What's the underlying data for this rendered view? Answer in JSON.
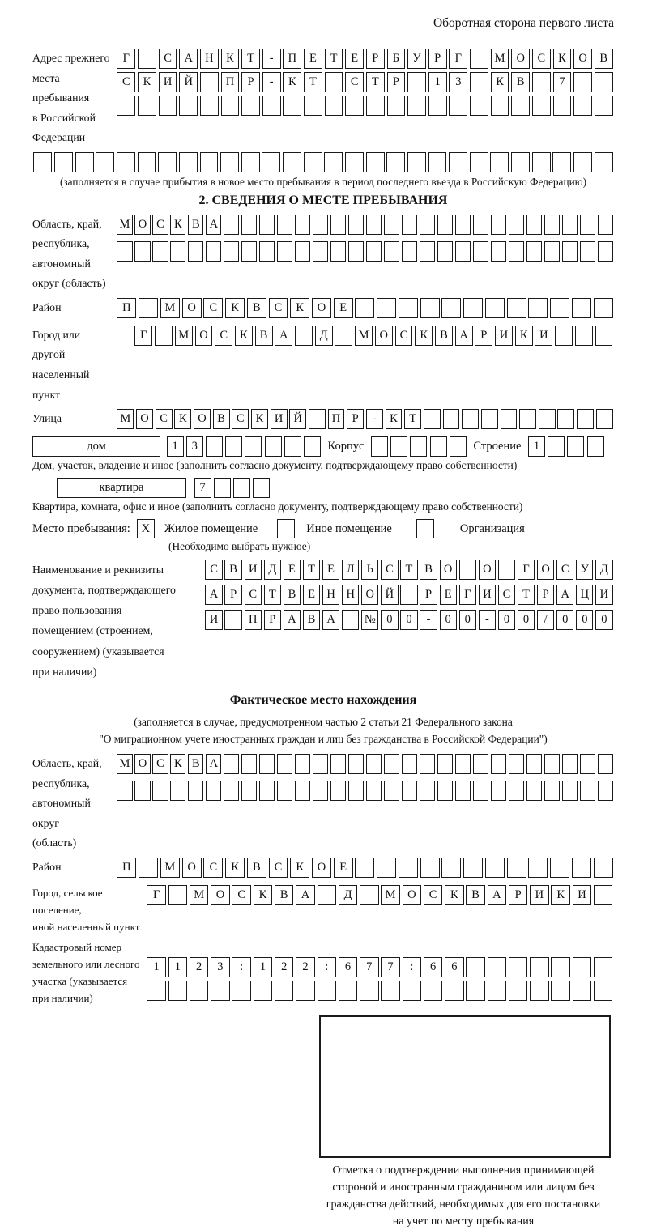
{
  "page": {
    "header_note": "Оборотная сторона первого листа"
  },
  "prev_address": {
    "label": "Адрес прежнего\nместа пребывания\nв Российской\nФедерации",
    "row1": [
      "Г",
      "",
      "С",
      "А",
      "Н",
      "К",
      "Т",
      "-",
      "П",
      "Е",
      "Т",
      "Е",
      "Р",
      "Б",
      "У",
      "Р",
      "Г",
      "",
      "М",
      "О",
      "С",
      "К",
      "О",
      "В"
    ],
    "row2": [
      "С",
      "К",
      "И",
      "Й",
      "",
      "П",
      "Р",
      "-",
      "К",
      "Т",
      "",
      "С",
      "Т",
      "Р",
      "",
      "1",
      "3",
      "",
      "К",
      "В",
      "",
      "7",
      "",
      ""
    ],
    "row3": [
      "",
      "",
      "",
      "",
      "",
      "",
      "",
      "",
      "",
      "",
      "",
      "",
      "",
      "",
      "",
      "",
      "",
      "",
      "",
      "",
      "",
      "",
      "",
      ""
    ],
    "row4": [
      "",
      "",
      "",
      "",
      "",
      "",
      "",
      "",
      "",
      "",
      "",
      "",
      "",
      "",
      "",
      "",
      "",
      "",
      "",
      "",
      "",
      "",
      "",
      "",
      "",
      "",
      "",
      ""
    ],
    "note": "(заполняется в случае прибытия в новое место пребывания в период последнего въезда в Российскую Федерацию)"
  },
  "section2": {
    "title": "2. СВЕДЕНИЯ О МЕСТЕ ПРЕБЫВАНИЯ",
    "region": {
      "label": "Область, край,\nреспублика,\nавтономный\nокруг (область)",
      "row1": [
        "М",
        "О",
        "С",
        "К",
        "В",
        "А",
        "",
        "",
        "",
        "",
        "",
        "",
        "",
        "",
        "",
        "",
        "",
        "",
        "",
        "",
        "",
        "",
        "",
        "",
        "",
        "",
        "",
        ""
      ],
      "row2": [
        "",
        "",
        "",
        "",
        "",
        "",
        "",
        "",
        "",
        "",
        "",
        "",
        "",
        "",
        "",
        "",
        "",
        "",
        "",
        "",
        "",
        "",
        "",
        "",
        "",
        "",
        "",
        ""
      ]
    },
    "district": {
      "label": "Район",
      "cells": [
        "П",
        "",
        "М",
        "О",
        "С",
        "К",
        "В",
        "С",
        "К",
        "О",
        "Е",
        "",
        "",
        "",
        "",
        "",
        "",
        "",
        "",
        "",
        "",
        "",
        ""
      ]
    },
    "city": {
      "label": "Город или другой\nнаселенный пункт",
      "cells": [
        "Г",
        "",
        "М",
        "О",
        "С",
        "К",
        "В",
        "А",
        "",
        "Д",
        "",
        "М",
        "О",
        "С",
        "К",
        "В",
        "А",
        "Р",
        "И",
        "К",
        "И",
        "",
        "",
        ""
      ]
    },
    "street": {
      "label": "Улица",
      "cells": [
        "М",
        "О",
        "С",
        "К",
        "О",
        "В",
        "С",
        "К",
        "И",
        "Й",
        "",
        "П",
        "Р",
        "-",
        "К",
        "Т",
        "",
        "",
        "",
        "",
        "",
        "",
        "",
        "",
        "",
        ""
      ]
    },
    "house": {
      "box_label": "дом",
      "cells": [
        "1",
        "3",
        "",
        "",
        "",
        "",
        "",
        ""
      ],
      "korpus_label": "Корпус",
      "korpus_cells": [
        "",
        "",
        "",
        "",
        ""
      ],
      "stroenie_label": "Строение",
      "stroenie_cells": [
        "1",
        "",
        "",
        ""
      ],
      "note": "Дом, участок, владение и иное (заполнить согласно документу, подтверждающему право собственности)"
    },
    "apartment": {
      "box_label": "квартира",
      "cells": [
        "7",
        "",
        "",
        ""
      ],
      "note": "Квартира, комната, офис и иное (заполнить согласно документу, подтверждающему право собственности)"
    },
    "stay": {
      "label": "Место пребывания:",
      "opt1_mark": "X",
      "opt1_label": "Жилое помещение",
      "opt2_mark": "",
      "opt2_label": "Иное помещение",
      "opt3_mark": "",
      "opt3_label": "Организация",
      "note": "(Необходимо выбрать нужное)"
    },
    "doc": {
      "label": "Наименование и реквизиты\nдокумента, подтверждающего\nправо пользования\nпомещением (строением,\nсооружением) (указывается\nпри наличии)",
      "row1": [
        "С",
        "В",
        "И",
        "Д",
        "Е",
        "Т",
        "Е",
        "Л",
        "Ь",
        "С",
        "Т",
        "В",
        "О",
        "",
        "О",
        "",
        "Г",
        "О",
        "С",
        "У",
        "Д"
      ],
      "row2": [
        "А",
        "Р",
        "С",
        "Т",
        "В",
        "Е",
        "Н",
        "Н",
        "О",
        "Й",
        "",
        "Р",
        "Е",
        "Г",
        "И",
        "С",
        "Т",
        "Р",
        "А",
        "Ц",
        "И"
      ],
      "row3": [
        "И",
        "",
        "П",
        "Р",
        "А",
        "В",
        "А",
        "",
        "№",
        "0",
        "0",
        "-",
        "0",
        "0",
        "-",
        "0",
        "0",
        "/",
        "0",
        "0",
        "0"
      ]
    }
  },
  "actual": {
    "title": "Фактическое место нахождения",
    "note_line1": "(заполняется в случае, предусмотренном частью 2 статьи 21 Федерального закона",
    "note_line2": "\"О миграционном учете иностранных граждан и лиц без гражданства в Российской Федерации\")",
    "region": {
      "label": "Область, край,\nреспублика,\nавтономный округ\n(область)",
      "row1": [
        "М",
        "О",
        "С",
        "К",
        "В",
        "А",
        "",
        "",
        "",
        "",
        "",
        "",
        "",
        "",
        "",
        "",
        "",
        "",
        "",
        "",
        "",
        "",
        "",
        "",
        "",
        "",
        "",
        ""
      ],
      "row2": [
        "",
        "",
        "",
        "",
        "",
        "",
        "",
        "",
        "",
        "",
        "",
        "",
        "",
        "",
        "",
        "",
        "",
        "",
        "",
        "",
        "",
        "",
        "",
        "",
        "",
        "",
        "",
        ""
      ]
    },
    "district": {
      "label": "Район",
      "cells": [
        "П",
        "",
        "М",
        "О",
        "С",
        "К",
        "В",
        "С",
        "К",
        "О",
        "Е",
        "",
        "",
        "",
        "",
        "",
        "",
        "",
        "",
        "",
        "",
        "",
        ""
      ]
    },
    "city": {
      "label": "Город, сельское поселение,\nиной населенный пункт",
      "cells": [
        "Г",
        "",
        "М",
        "О",
        "С",
        "К",
        "В",
        "А",
        "",
        "Д",
        "",
        "М",
        "О",
        "С",
        "К",
        "В",
        "А",
        "Р",
        "И",
        "К",
        "И",
        ""
      ]
    },
    "cadastral": {
      "label": "Кадастровый номер\nземельного или лесного\nучастка (указывается\nпри наличии)",
      "row1": [
        "1",
        "1",
        "2",
        "3",
        ":",
        "1",
        "2",
        "2",
        ":",
        "6",
        "7",
        "7",
        ":",
        "6",
        "6",
        "",
        "",
        "",
        "",
        "",
        "",
        ""
      ],
      "row2": [
        "",
        "",
        "",
        "",
        "",
        "",
        "",
        "",
        "",
        "",
        "",
        "",
        "",
        "",
        "",
        "",
        "",
        "",
        "",
        "",
        "",
        ""
      ]
    },
    "stamp_note_line1": "Отметка о подтверждении выполнения принимающей",
    "stamp_note_line2": "стороной и иностранным гражданином или лицом без",
    "stamp_note_line3": "гражданства действий, необходимых для его постановки",
    "stamp_note_line4": "на учет по месту пребывания"
  }
}
